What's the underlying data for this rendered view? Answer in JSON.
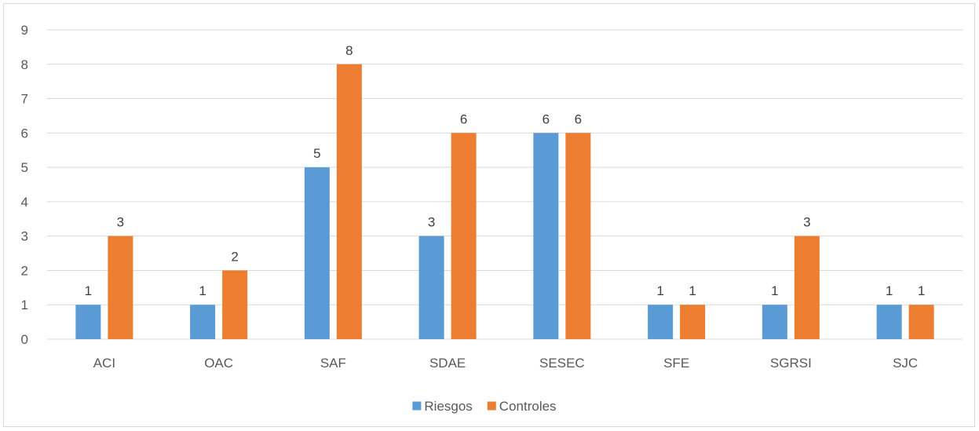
{
  "chart_data": {
    "type": "bar",
    "title": "",
    "xlabel": "",
    "ylabel": "",
    "categories": [
      "ACI",
      "OAC",
      "SAF",
      "SDAE",
      "SESEC",
      "SFE",
      "SGRSI",
      "SJC"
    ],
    "series": [
      {
        "name": "Riesgos",
        "color": "#5b9bd5",
        "values": [
          1,
          1,
          5,
          3,
          6,
          1,
          1,
          1
        ]
      },
      {
        "name": "Controles",
        "color": "#ed7d31",
        "values": [
          3,
          2,
          8,
          6,
          6,
          1,
          3,
          1
        ]
      }
    ],
    "ylim": [
      0,
      9
    ],
    "yticks": [
      0,
      1,
      2,
      3,
      4,
      5,
      6,
      7,
      8,
      9
    ],
    "grid": true,
    "data_labels": true,
    "legend": "bottom-center"
  }
}
